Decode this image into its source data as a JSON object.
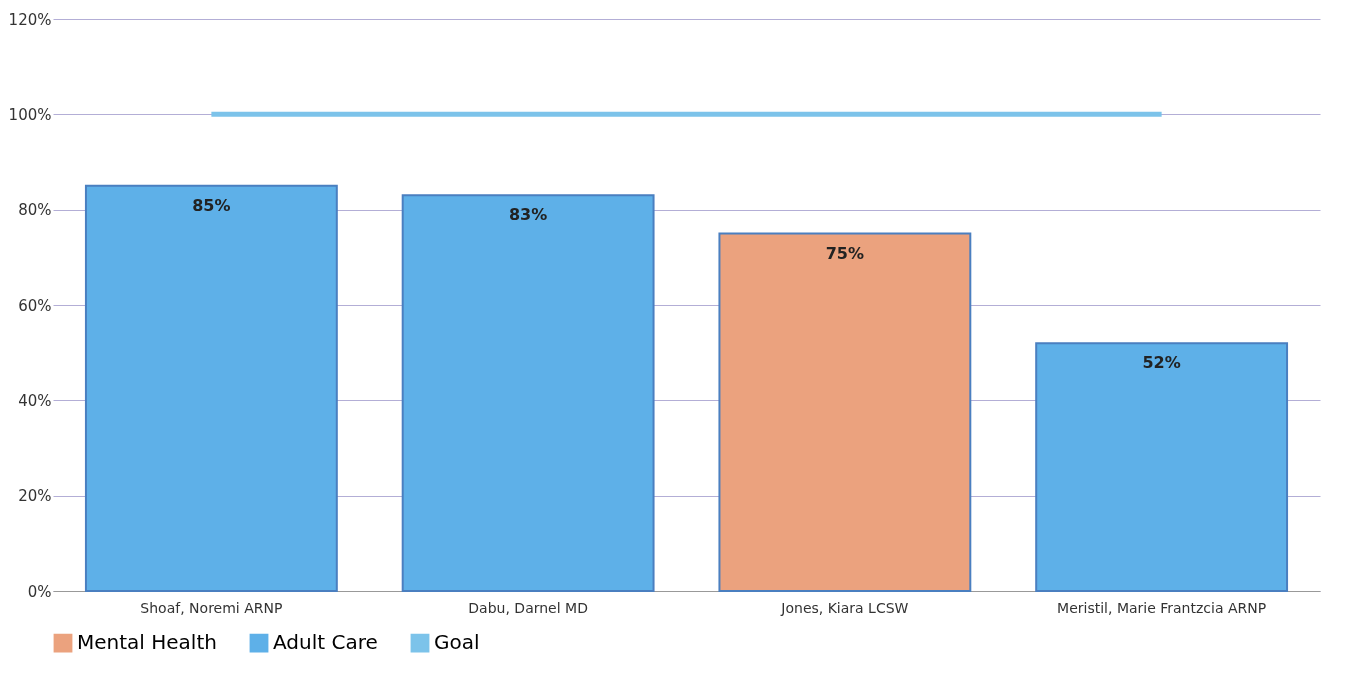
{
  "chart_data": {
    "type": "bar",
    "categories": [
      "Shoaf, Noremi ARNP",
      "Dabu, Darnel MD",
      "Jones, Kiara LCSW",
      "Meristil, Marie Frantzcia ARNP"
    ],
    "series": [
      {
        "name": "Mental Health",
        "color": "#eba27e",
        "values": [
          null,
          null,
          75,
          null
        ],
        "value_labels": [
          null,
          null,
          "75%",
          null
        ]
      },
      {
        "name": "Adult Care",
        "color": "#5eb0e8",
        "values": [
          85,
          83,
          null,
          52
        ],
        "value_labels": [
          "85%",
          "83%",
          null,
          "52%"
        ]
      },
      {
        "name": "Goal",
        "type": "line",
        "color": "#7cc3ea",
        "values": [
          100,
          100,
          100,
          100
        ]
      }
    ],
    "ylim": [
      0,
      120
    ],
    "yticks": [
      {
        "value": 0,
        "label": "0%"
      },
      {
        "value": 20,
        "label": "20%"
      },
      {
        "value": 40,
        "label": "40%"
      },
      {
        "value": 60,
        "label": "60%"
      },
      {
        "value": 80,
        "label": "80%"
      },
      {
        "value": 100,
        "label": "100%"
      },
      {
        "value": 120,
        "label": "120%"
      }
    ],
    "grid": "y",
    "legend": "bottom"
  }
}
